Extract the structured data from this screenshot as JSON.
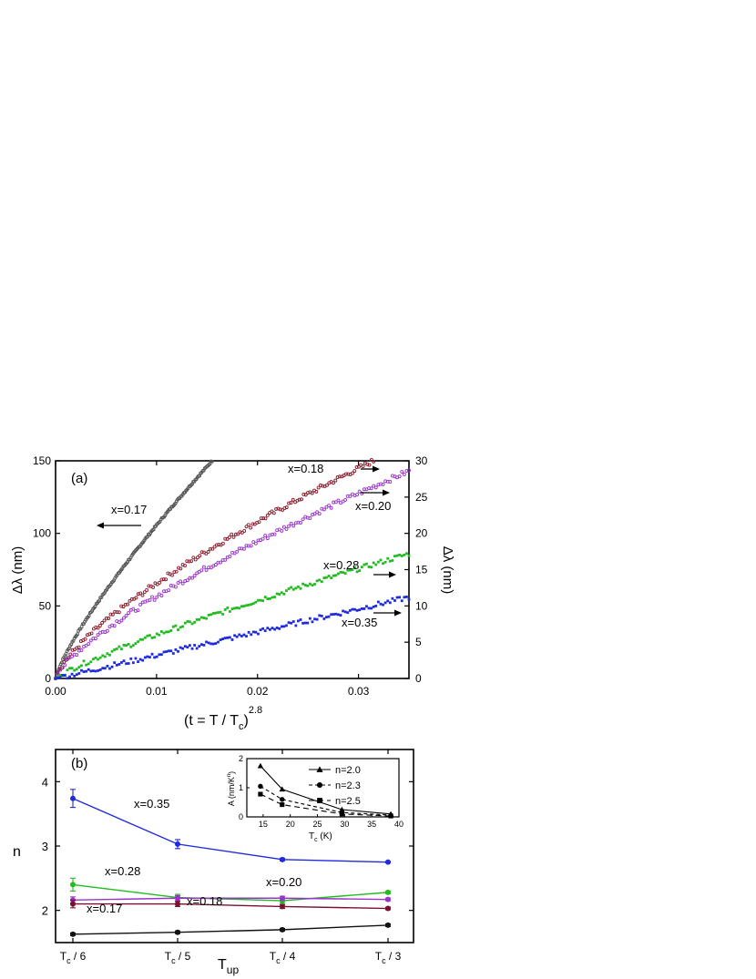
{
  "chart_data": [
    {
      "panel_label": "(a)",
      "type": "scatter",
      "xlabel_main": "(t = T / T",
      "xlabel_sub": "c",
      "xlabel_close": ")",
      "xlabel_sup": "2.8",
      "ylabel_left": "Δλ  (nm)",
      "ylabel_right": "Δλ  (nm)",
      "xlim": [
        0,
        0.035
      ],
      "ylim_left": [
        0,
        150
      ],
      "ylim_right": [
        0,
        30
      ],
      "xticks": [
        "0.00",
        "0.01",
        "0.02",
        "0.03"
      ],
      "yticks_left": [
        "0",
        "50",
        "100",
        "150"
      ],
      "yticks_right": [
        "0",
        "5",
        "10",
        "15",
        "20",
        "25",
        "30"
      ],
      "series": [
        {
          "name": "x=0.17",
          "axis": "left",
          "color": "#555555",
          "marker": "open-circle",
          "xmax": 0.0155,
          "ymax": 150,
          "exp": 0.8
        },
        {
          "name": "x=0.18",
          "axis": "right",
          "color": "#8b1a2b",
          "marker": "open-circle",
          "xmax": 0.0315,
          "ymax": 30,
          "exp": 0.72
        },
        {
          "name": "x=0.20",
          "axis": "right",
          "color": "#9933cc",
          "marker": "open-circle",
          "xmax": 0.035,
          "ymax": 28.6,
          "exp": 0.74
        },
        {
          "name": "x=0.28",
          "axis": "right",
          "color": "#22bb22",
          "marker": "filled-square",
          "xmax": 0.035,
          "ymax": 17.2,
          "exp": 0.84
        },
        {
          "name": "x=0.35",
          "axis": "right",
          "color": "#1f2bdd",
          "marker": "filled-square",
          "xmax": 0.035,
          "ymax": 11.2,
          "exp": 1.0
        }
      ]
    },
    {
      "panel_label": "(b)",
      "type": "line",
      "categories": [
        "T_c / 6",
        "T_c / 5",
        "T_c / 4",
        "T_c / 3"
      ],
      "ylabel": "n",
      "xlabel_main": "T",
      "xlabel_sub": "up",
      "ylim": [
        1.5,
        4.5
      ],
      "yticks": [
        "2",
        "3",
        "4"
      ],
      "series": [
        {
          "name": "x=0.35",
          "color": "#1f2bdd",
          "values": [
            3.74,
            3.03,
            2.79,
            2.75
          ],
          "errors": [
            0.14,
            0.07,
            0.02,
            0.01
          ]
        },
        {
          "name": "x=0.28",
          "color": "#22bb22",
          "values": [
            2.4,
            2.2,
            2.15,
            2.28
          ],
          "errors": [
            0.1,
            0.05,
            0.04,
            0.02
          ]
        },
        {
          "name": "x=0.20",
          "color": "#9933cc",
          "values": [
            2.16,
            2.19,
            2.19,
            2.17
          ],
          "errors": [
            0.05,
            0.04,
            0.03,
            0.02
          ]
        },
        {
          "name": "x=0.18",
          "color": "#7a1030",
          "values": [
            2.1,
            2.1,
            2.06,
            2.03
          ],
          "errors": [
            0.06,
            0.04,
            0.03,
            0.02
          ]
        },
        {
          "name": "x=0.17",
          "color": "#111111",
          "values": [
            1.63,
            1.66,
            1.7,
            1.77
          ],
          "errors": [
            0.02,
            0.02,
            0.02,
            0.02
          ]
        }
      ],
      "inset": {
        "ylabel": "A (nm/K",
        "ylabel_sup": "n",
        "ylabel_close": ")",
        "xlabel_main": "T",
        "xlabel_sub": "c",
        "xlabel_rest": " (K)",
        "xlim": [
          12,
          40
        ],
        "ylim": [
          0,
          2
        ],
        "xticks": [
          "15",
          "20",
          "25",
          "30",
          "35",
          "40"
        ],
        "yticks": [
          "0",
          "1",
          "2"
        ],
        "series": [
          {
            "name": "n=2.0",
            "marker": "triangle",
            "dash": "",
            "x": [
              14.5,
              18.5,
              29.5,
              38.5
            ],
            "y": [
              1.75,
              0.95,
              0.25,
              0.1
            ]
          },
          {
            "name": "n=2.3",
            "marker": "circle",
            "dash": "4,3",
            "x": [
              14.5,
              18.5,
              29.5,
              38.5
            ],
            "y": [
              1.05,
              0.6,
              0.15,
              0.06
            ]
          },
          {
            "name": "n=2.5",
            "marker": "square",
            "dash": "6,4",
            "x": [
              14.5,
              18.5,
              29.5,
              38.5
            ],
            "y": [
              0.78,
              0.42,
              0.1,
              0.03
            ]
          }
        ]
      }
    }
  ]
}
